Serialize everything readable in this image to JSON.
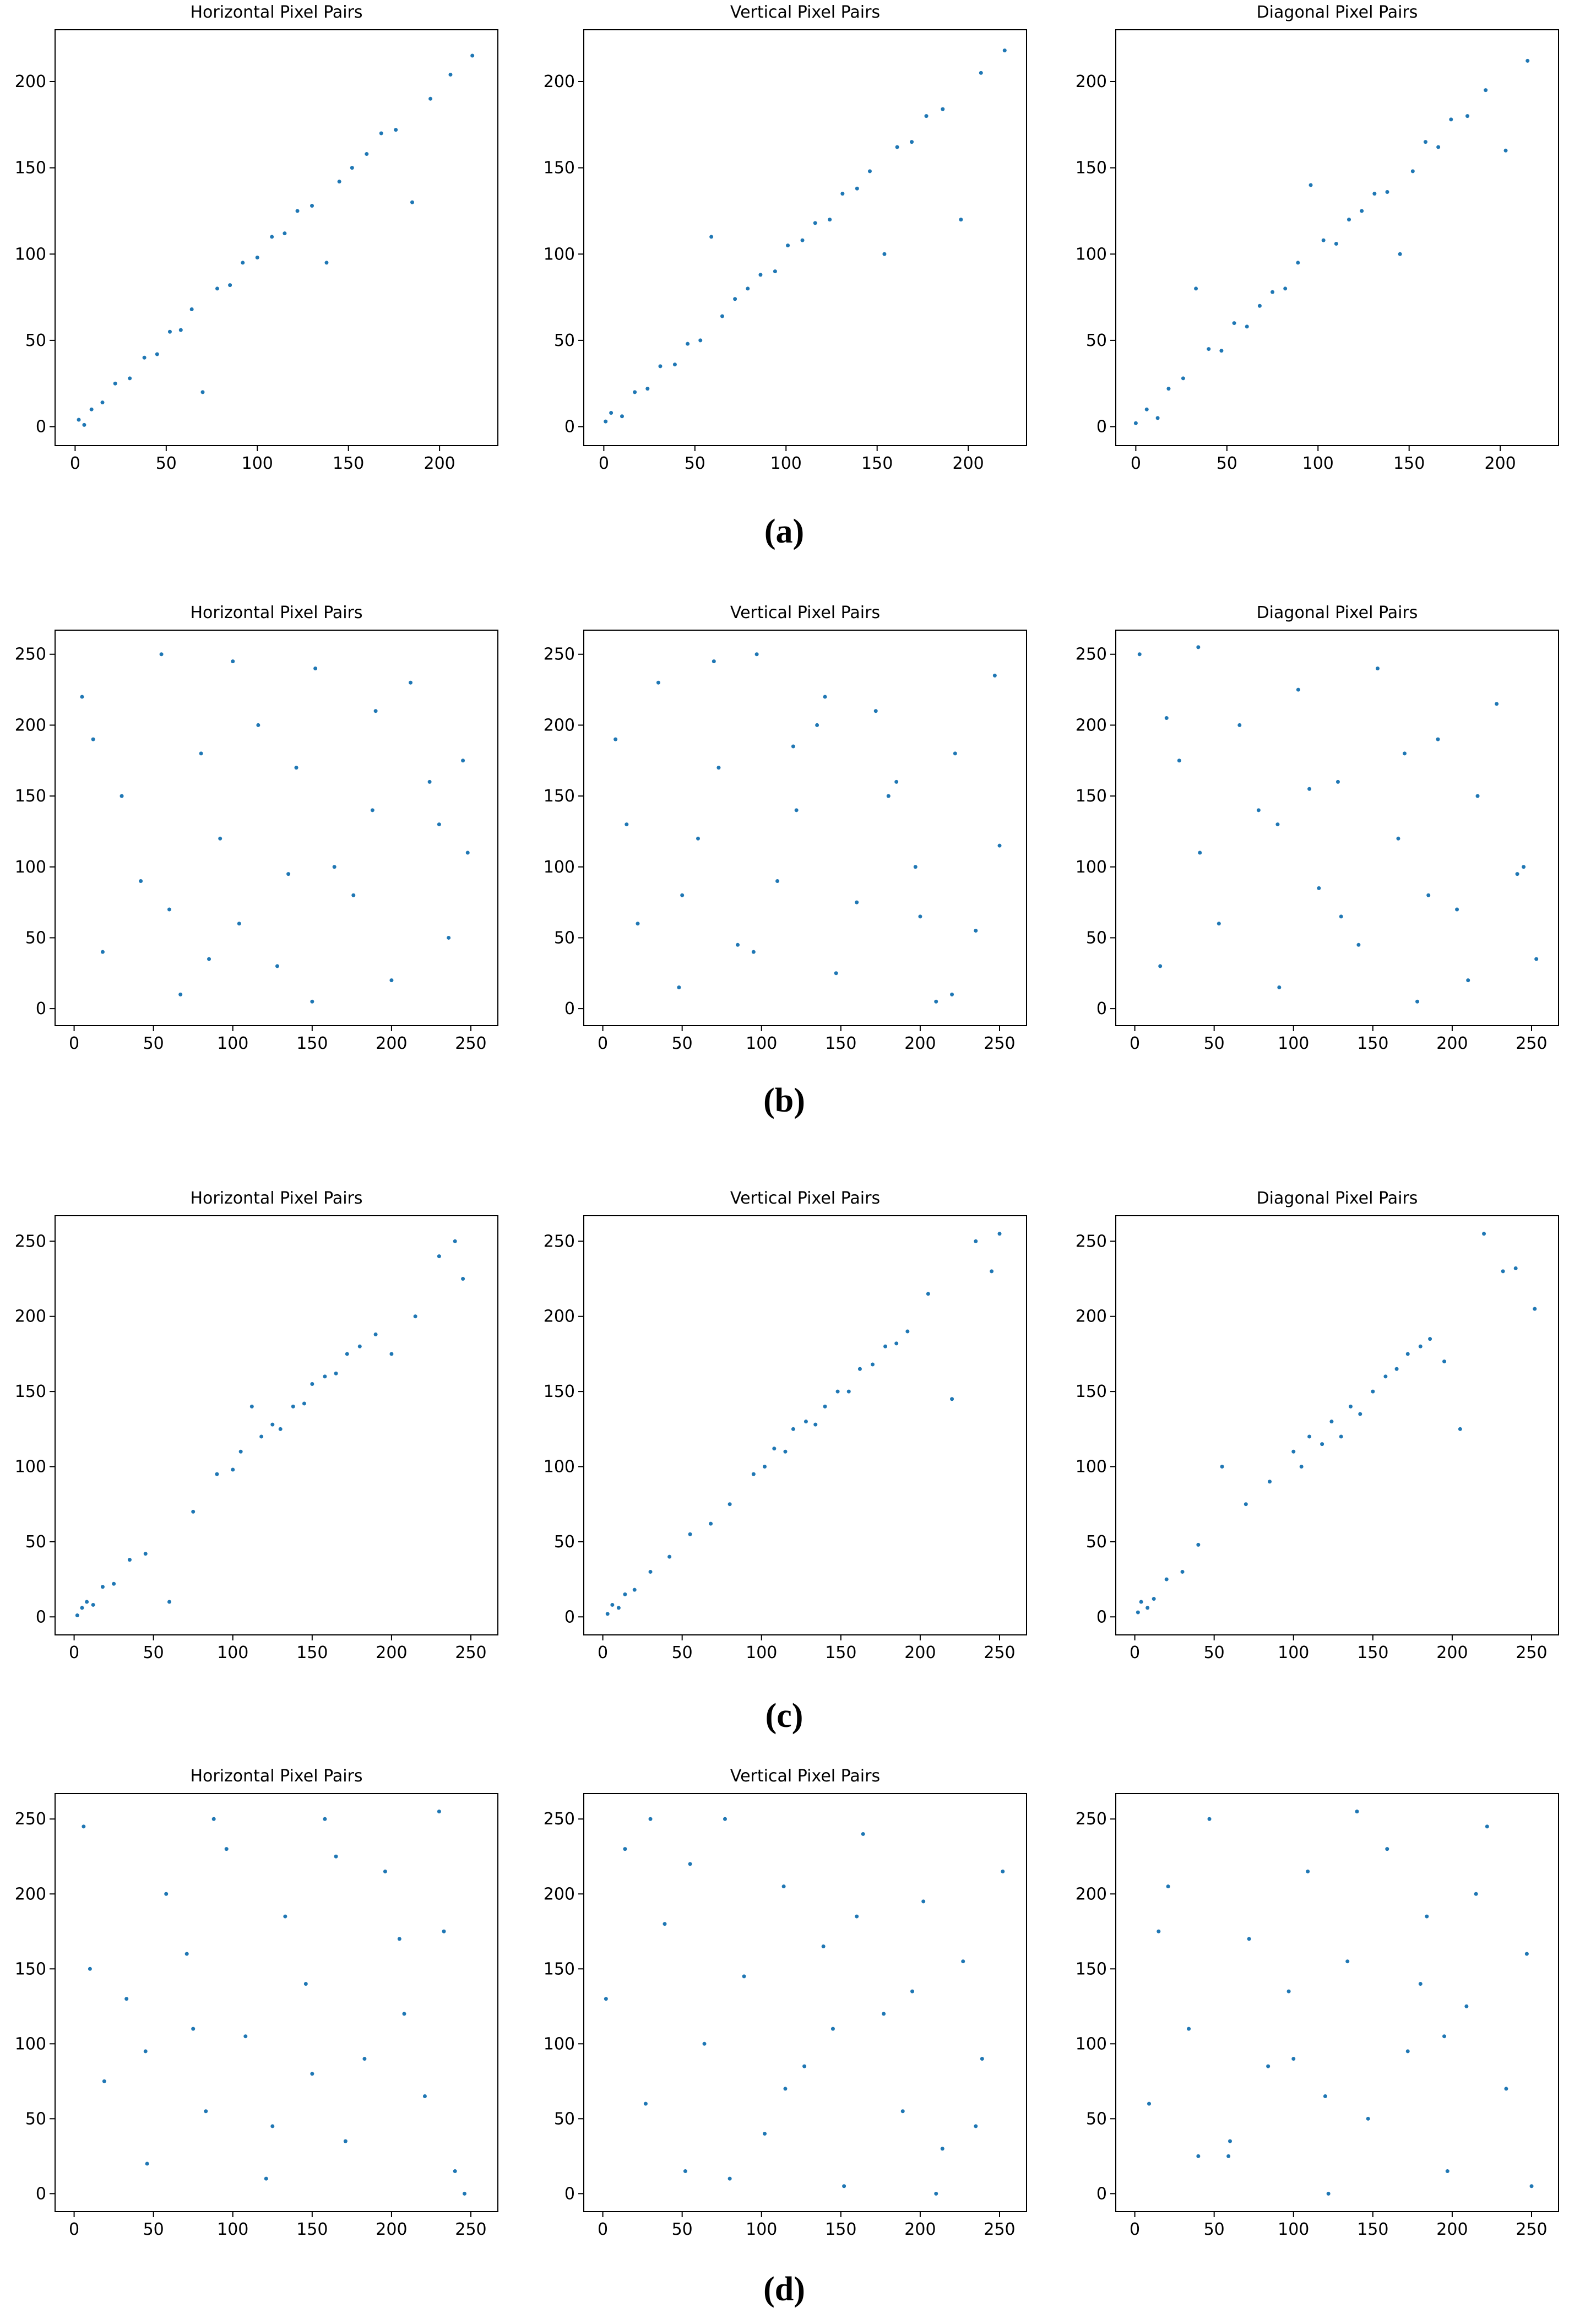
{
  "captions": [
    "(a)",
    "(b)",
    "(c)",
    "(d)"
  ],
  "chart_data": [
    {
      "type": "scatter",
      "title": "Horizontal Pixel Pairs",
      "color": "#1f77b4",
      "xlim": [
        -11,
        232
      ],
      "ylim": [
        -11,
        230
      ],
      "xticks": [
        0,
        50,
        100,
        150,
        200
      ],
      "yticks": [
        0,
        50,
        100,
        150,
        200
      ],
      "x": [
        2,
        5,
        9,
        15,
        22,
        30,
        38,
        45,
        52,
        58,
        64,
        70,
        78,
        85,
        92,
        100,
        108,
        115,
        122,
        130,
        138,
        145,
        152,
        160,
        168,
        176,
        185,
        195,
        206,
        218
      ],
      "y": [
        4,
        1,
        10,
        14,
        25,
        28,
        40,
        42,
        55,
        56,
        68,
        20,
        80,
        82,
        95,
        98,
        110,
        112,
        125,
        128,
        95,
        142,
        150,
        158,
        170,
        172,
        130,
        190,
        204,
        215
      ]
    },
    {
      "type": "scatter",
      "title": "Vertical Pixel Pairs",
      "color": "#1f77b4",
      "xlim": [
        -11,
        232
      ],
      "ylim": [
        -11,
        230
      ],
      "xticks": [
        0,
        50,
        100,
        150,
        200
      ],
      "yticks": [
        0,
        50,
        100,
        150,
        200
      ],
      "x": [
        1,
        4,
        10,
        17,
        24,
        31,
        39,
        46,
        53,
        59,
        65,
        72,
        79,
        86,
        94,
        101,
        109,
        116,
        124,
        131,
        139,
        146,
        154,
        161,
        169,
        177,
        186,
        196,
        207,
        220
      ],
      "y": [
        3,
        8,
        6,
        20,
        22,
        35,
        36,
        48,
        50,
        110,
        64,
        74,
        80,
        88,
        90,
        105,
        108,
        118,
        120,
        135,
        138,
        148,
        100,
        162,
        165,
        180,
        184,
        120,
        205,
        218
      ]
    },
    {
      "type": "scatter",
      "title": "Diagonal Pixel Pairs",
      "color": "#1f77b4",
      "xlim": [
        -11,
        232
      ],
      "ylim": [
        -11,
        230
      ],
      "xticks": [
        0,
        50,
        100,
        150,
        200
      ],
      "yticks": [
        0,
        50,
        100,
        150,
        200
      ],
      "x": [
        0,
        6,
        12,
        18,
        26,
        33,
        40,
        47,
        54,
        61,
        68,
        75,
        82,
        89,
        96,
        103,
        110,
        117,
        124,
        131,
        138,
        145,
        152,
        159,
        166,
        173,
        182,
        192,
        203,
        215
      ],
      "y": [
        2,
        10,
        5,
        22,
        28,
        80,
        45,
        44,
        60,
        58,
        70,
        78,
        80,
        95,
        140,
        108,
        106,
        120,
        125,
        135,
        136,
        100,
        148,
        165,
        162,
        178,
        180,
        195,
        160,
        212
      ]
    },
    {
      "type": "scatter",
      "title": "Horizontal Pixel Pairs",
      "color": "#1f77b4",
      "xlim": [
        -12,
        267
      ],
      "ylim": [
        -12,
        267
      ],
      "xticks": [
        0,
        50,
        100,
        150,
        200,
        250
      ],
      "yticks": [
        0,
        50,
        100,
        150,
        200,
        250
      ],
      "x": [
        5,
        18,
        30,
        42,
        55,
        67,
        80,
        92,
        104,
        116,
        128,
        140,
        152,
        164,
        176,
        188,
        200,
        212,
        224,
        236,
        248,
        12,
        60,
        100,
        150,
        190,
        230,
        85,
        135,
        245
      ],
      "y": [
        220,
        40,
        150,
        90,
        250,
        10,
        180,
        120,
        60,
        200,
        30,
        170,
        240,
        100,
        80,
        140,
        20,
        230,
        160,
        50,
        110,
        190,
        70,
        245,
        5,
        210,
        130,
        35,
        95,
        175
      ]
    },
    {
      "type": "scatter",
      "title": "Vertical Pixel Pairs",
      "color": "#1f77b4",
      "xlim": [
        -12,
        267
      ],
      "ylim": [
        -12,
        267
      ],
      "xticks": [
        0,
        50,
        100,
        150,
        200,
        250
      ],
      "yticks": [
        0,
        50,
        100,
        150,
        200,
        250
      ],
      "x": [
        8,
        22,
        35,
        48,
        60,
        73,
        85,
        97,
        110,
        122,
        135,
        147,
        160,
        172,
        185,
        197,
        210,
        222,
        235,
        247,
        15,
        50,
        95,
        140,
        180,
        220,
        250,
        70,
        120,
        200
      ],
      "y": [
        190,
        60,
        230,
        15,
        120,
        170,
        45,
        250,
        90,
        140,
        200,
        25,
        75,
        210,
        160,
        100,
        5,
        180,
        55,
        235,
        130,
        80,
        40,
        220,
        150,
        10,
        115,
        245,
        185,
        65
      ]
    },
    {
      "type": "scatter",
      "title": "Diagonal Pixel Pairs",
      "color": "#1f77b4",
      "xlim": [
        -12,
        267
      ],
      "ylim": [
        -12,
        267
      ],
      "xticks": [
        0,
        50,
        100,
        150,
        200,
        250
      ],
      "yticks": [
        0,
        50,
        100,
        150,
        200,
        250
      ],
      "x": [
        3,
        16,
        28,
        41,
        53,
        66,
        78,
        91,
        103,
        116,
        128,
        141,
        153,
        166,
        178,
        191,
        203,
        216,
        228,
        241,
        253,
        40,
        90,
        130,
        170,
        210,
        245,
        20,
        110,
        185
      ],
      "y": [
        250,
        30,
        175,
        110,
        60,
        200,
        140,
        15,
        225,
        85,
        160,
        45,
        240,
        120,
        5,
        190,
        70,
        150,
        215,
        95,
        35,
        255,
        130,
        65,
        180,
        20,
        100,
        205,
        155,
        80
      ]
    },
    {
      "type": "scatter",
      "title": "Horizontal Pixel Pairs",
      "color": "#1f77b4",
      "xlim": [
        -12,
        267
      ],
      "ylim": [
        -12,
        267
      ],
      "xticks": [
        0,
        50,
        100,
        150,
        200,
        250
      ],
      "yticks": [
        0,
        50,
        100,
        150,
        200,
        250
      ],
      "x": [
        2,
        5,
        8,
        12,
        18,
        25,
        35,
        45,
        60,
        75,
        90,
        100,
        105,
        112,
        118,
        125,
        130,
        138,
        145,
        150,
        158,
        165,
        172,
        180,
        190,
        200,
        215,
        230,
        240,
        245
      ],
      "y": [
        1,
        6,
        10,
        8,
        20,
        22,
        38,
        42,
        10,
        70,
        95,
        98,
        110,
        140,
        120,
        128,
        125,
        140,
        142,
        155,
        160,
        162,
        175,
        180,
        188,
        175,
        200,
        240,
        250,
        225
      ]
    },
    {
      "type": "scatter",
      "title": "Vertical Pixel Pairs",
      "color": "#1f77b4",
      "xlim": [
        -12,
        267
      ],
      "ylim": [
        -12,
        267
      ],
      "xticks": [
        0,
        50,
        100,
        150,
        200,
        250
      ],
      "yticks": [
        0,
        50,
        100,
        150,
        200,
        250
      ],
      "x": [
        3,
        6,
        10,
        14,
        20,
        30,
        42,
        55,
        68,
        80,
        95,
        102,
        108,
        115,
        120,
        128,
        134,
        140,
        148,
        155,
        162,
        170,
        178,
        185,
        192,
        205,
        220,
        235,
        245,
        250
      ],
      "y": [
        2,
        8,
        6,
        15,
        18,
        30,
        40,
        55,
        62,
        75,
        95,
        100,
        112,
        110,
        125,
        130,
        128,
        140,
        150,
        150,
        165,
        168,
        180,
        182,
        190,
        215,
        145,
        250,
        230,
        255
      ]
    },
    {
      "type": "scatter",
      "title": "Diagonal Pixel Pairs",
      "color": "#1f77b4",
      "xlim": [
        -12,
        267
      ],
      "ylim": [
        -12,
        267
      ],
      "xticks": [
        0,
        50,
        100,
        150,
        200,
        250
      ],
      "yticks": [
        0,
        50,
        100,
        150,
        200,
        250
      ],
      "x": [
        2,
        4,
        8,
        12,
        20,
        30,
        40,
        55,
        70,
        85,
        100,
        105,
        110,
        118,
        124,
        130,
        136,
        142,
        150,
        158,
        165,
        172,
        180,
        186,
        195,
        205,
        220,
        232,
        240,
        252
      ],
      "y": [
        3,
        10,
        6,
        12,
        25,
        30,
        48,
        100,
        75,
        90,
        110,
        100,
        120,
        115,
        130,
        120,
        140,
        135,
        150,
        160,
        165,
        175,
        180,
        185,
        170,
        125,
        255,
        230,
        232,
        205
      ]
    },
    {
      "type": "scatter",
      "title": "Horizontal Pixel Pairs",
      "color": "#1f77b4",
      "xlim": [
        -12,
        267
      ],
      "ylim": [
        -12,
        267
      ],
      "xticks": [
        0,
        50,
        100,
        150,
        200,
        250
      ],
      "yticks": [
        0,
        50,
        100,
        150,
        200,
        250
      ],
      "x": [
        6,
        19,
        33,
        46,
        58,
        71,
        83,
        96,
        108,
        121,
        133,
        146,
        158,
        171,
        183,
        196,
        208,
        221,
        233,
        246,
        10,
        45,
        88,
        125,
        165,
        205,
        240,
        75,
        150,
        230
      ],
      "y": [
        245,
        75,
        130,
        20,
        200,
        160,
        55,
        230,
        105,
        10,
        185,
        140,
        250,
        35,
        90,
        215,
        120,
        65,
        175,
        0,
        150,
        95,
        250,
        45,
        225,
        170,
        15,
        110,
        80,
        255
      ]
    },
    {
      "type": "scatter",
      "title": "Vertical Pixel Pairs",
      "color": "#1f77b4",
      "xlim": [
        -12,
        267
      ],
      "ylim": [
        -12,
        267
      ],
      "xticks": [
        0,
        50,
        100,
        150,
        200,
        250
      ],
      "yticks": [
        0,
        50,
        100,
        150,
        200,
        250
      ],
      "x": [
        2,
        14,
        27,
        39,
        52,
        64,
        77,
        89,
        102,
        114,
        127,
        139,
        152,
        164,
        177,
        189,
        202,
        214,
        227,
        239,
        252,
        30,
        80,
        115,
        160,
        195,
        235,
        55,
        145,
        210
      ],
      "y": [
        130,
        230,
        60,
        180,
        15,
        100,
        250,
        145,
        40,
        205,
        85,
        165,
        5,
        240,
        120,
        55,
        195,
        30,
        155,
        90,
        215,
        250,
        10,
        70,
        185,
        135,
        45,
        220,
        110,
        0
      ]
    },
    {
      "type": "scatter",
      "color": "#1f77b4",
      "xlim": [
        -12,
        267
      ],
      "ylim": [
        -12,
        267
      ],
      "xticks": [
        0,
        50,
        100,
        150,
        200,
        250
      ],
      "yticks": [
        0,
        50,
        100,
        150,
        200,
        250
      ],
      "x": [
        9,
        21,
        34,
        47,
        59,
        72,
        84,
        97,
        109,
        122,
        134,
        147,
        159,
        172,
        184,
        197,
        209,
        222,
        234,
        247,
        15,
        60,
        100,
        140,
        180,
        215,
        250,
        40,
        120,
        195
      ],
      "y": [
        60,
        205,
        110,
        250,
        25,
        170,
        85,
        135,
        215,
        0,
        155,
        50,
        230,
        95,
        185,
        15,
        125,
        245,
        70,
        160,
        175,
        35,
        90,
        255,
        140,
        200,
        5,
        25,
        65,
        105
      ]
    }
  ]
}
